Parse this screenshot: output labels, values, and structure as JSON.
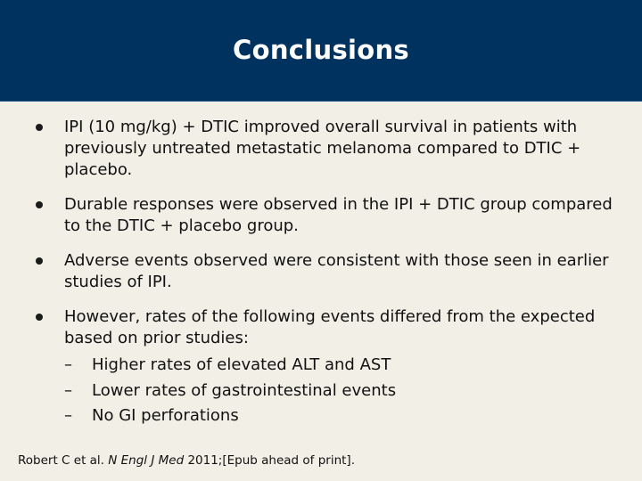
{
  "slide": {
    "title": "Conclusions",
    "bullets": [
      {
        "text": "IPI (10 mg/kg) + DTIC improved overall survival in patients with previously untreated metastatic melanoma compared to DTIC + placebo."
      },
      {
        "text": "Durable responses were observed in the IPI + DTIC group compared to the DTIC + placebo group."
      },
      {
        "text": "Adverse events observed were consistent with those seen in earlier studies of IPI."
      },
      {
        "text": "However, rates of the following events differed from the expected based on prior studies:",
        "subitems": [
          "Higher rates of elevated ALT and AST",
          "Lower rates of gastrointestinal events",
          "No GI perforations"
        ]
      }
    ],
    "dash": "–",
    "citation": {
      "prefix": "Robert C et al.",
      "journal": "N Engl J Med",
      "suffix": "2011;[Epub ahead of print]."
    }
  },
  "colors": {
    "header_bg": "#00325f",
    "slide_bg": "#f2efe6",
    "title_text": "#ffffff"
  }
}
